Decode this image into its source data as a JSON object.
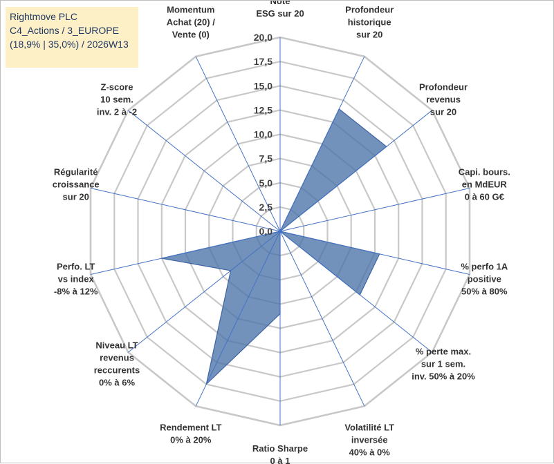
{
  "title_box": {
    "line1": "Rightmove PLC",
    "line2": "C4_Actions / 3_EUROPE",
    "line3": "(18,9% | 35,0%) / 2026W13"
  },
  "colors": {
    "fill": "#4a72a8",
    "outline": "#3d64a3",
    "grid": "#c8c8c8",
    "spoke": "#4472c4",
    "title_bg": "#fdf0c7",
    "title_text": "#1f3864"
  },
  "chart_data": {
    "type": "radar",
    "rmax": 20,
    "ticks": [
      0,
      2.5,
      5,
      7.5,
      10,
      12.5,
      15,
      17.5,
      20
    ],
    "tick_labels": [
      "0,0",
      "2,5",
      "5,0",
      "7,5",
      "10,0",
      "12,5",
      "15,0",
      "17,5",
      "20,0"
    ],
    "axes": [
      [
        "Note",
        "ESG sur 20"
      ],
      [
        "Profondeur",
        "historique",
        "sur 20"
      ],
      [
        "Profondeur",
        "revenus",
        "sur 20"
      ],
      [
        "Capi. bours.",
        "en MdEUR",
        "0 à 60 G€"
      ],
      [
        "% perfo 1A",
        "positive",
        "50% à 80%"
      ],
      [
        "% perte max.",
        "sur 1 sem.",
        "inv. 50% à 20%"
      ],
      [
        "Volatilité LT",
        "inversée",
        "40% à 0%"
      ],
      [
        "Ratio Sharpe",
        "0 à 1"
      ],
      [
        "Rendement LT",
        "0% à 20%"
      ],
      [
        "Niveau LT",
        "revenus",
        "reccurents",
        "0% à 6%"
      ],
      [
        "Perfo. LT",
        "vs index",
        "-8% à 12%"
      ],
      [
        "Régularité",
        "croissance",
        "sur 20"
      ],
      [
        "Z-score",
        "10 sem.",
        "inv. 2 à -2"
      ],
      [
        "Momentum",
        "Achat (20) /",
        "Vente (0)"
      ]
    ],
    "series": [
      {
        "values": [
          0,
          14,
          14,
          0,
          10.5,
          10.5,
          0,
          8.5,
          17.5,
          6.5,
          12.5,
          0,
          0,
          0
        ]
      }
    ]
  }
}
